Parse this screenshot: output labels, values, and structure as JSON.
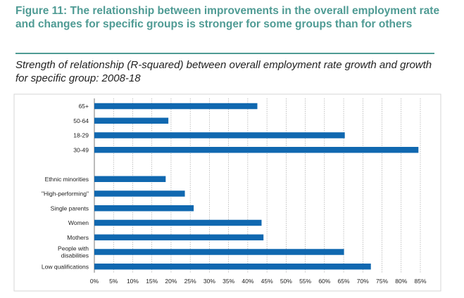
{
  "figure": {
    "title": "Figure 11: The relationship between improvements in the overall employment rate and changes for specific groups is stronger for some groups than for others",
    "subtitle": "Strength of relationship (R-squared) between overall employment rate growth and growth for specific group: 2008-18"
  },
  "chart_data": {
    "type": "bar",
    "orientation": "horizontal",
    "title": "",
    "xlabel": "",
    "ylabel": "",
    "xlim": [
      0,
      85
    ],
    "x_ticks": [
      "0%",
      "5%",
      "10%",
      "15%",
      "20%",
      "25%",
      "30%",
      "35%",
      "40%",
      "45%",
      "50%",
      "55%",
      "60%",
      "65%",
      "70%",
      "75%",
      "80%",
      "85%"
    ],
    "grid": true,
    "colors": {
      "bar": "#1068b0"
    },
    "categories": [
      [
        "65+"
      ],
      [
        "50-64"
      ],
      [
        "18-29"
      ],
      [
        "30-49"
      ],
      [
        ""
      ],
      [
        "Ethnic minorities"
      ],
      [
        "\"High-performing\""
      ],
      [
        "Single parents"
      ],
      [
        "Women"
      ],
      [
        "Mothers"
      ],
      [
        "People with",
        "disabilities"
      ],
      [
        "Low qualifications"
      ]
    ],
    "values": [
      42.5,
      19.3,
      65.3,
      84.5,
      null,
      18.6,
      23.6,
      25.9,
      43.6,
      44.1,
      65.1,
      72.1
    ]
  }
}
